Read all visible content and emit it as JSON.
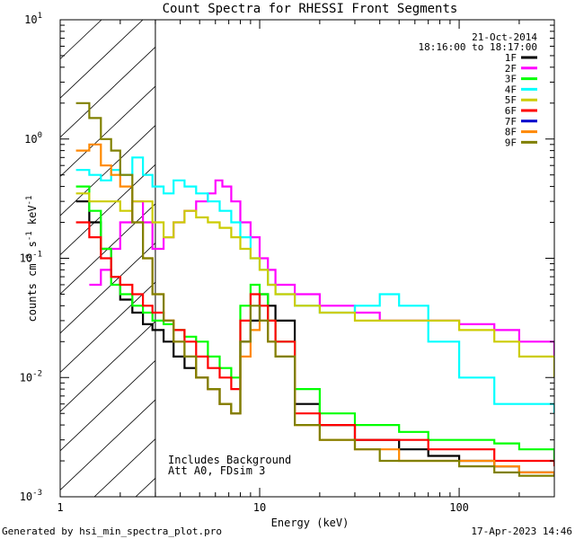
{
  "chart_data": {
    "type": "line",
    "title": "Count Spectra for RHESSI Front Segments",
    "xlabel": "Energy (keV)",
    "ylabel": "counts cm^-2 s^-1 keV^-1",
    "ylabel_parts": {
      "base": "counts cm",
      "e1": "-2",
      "mid": " s",
      "e2": "-1",
      "end": " keV",
      "e3": "-1"
    },
    "x_scale": "log",
    "y_scale": "log",
    "xlim": [
      1,
      300
    ],
    "ylim": [
      0.001,
      10
    ],
    "x_ticks": [
      {
        "value": 1,
        "label": "1"
      },
      {
        "value": 10,
        "label": "10"
      },
      {
        "value": 100,
        "label": "100"
      }
    ],
    "y_ticks": [
      {
        "value": 10,
        "base": "10",
        "exp": "1"
      },
      {
        "value": 1,
        "base": "10",
        "exp": "0"
      },
      {
        "value": 0.1,
        "base": "10",
        "exp": "-1"
      },
      {
        "value": 0.01,
        "base": "10",
        "exp": "-2"
      },
      {
        "value": 0.001,
        "base": "10",
        "exp": "-3"
      }
    ],
    "date": "21-Oct-2014",
    "time_range": "18:16:00 to 18:17:00",
    "attenuator_boundary_keV": 3,
    "annotations": [
      "Includes Background",
      "Att A0, FDsim 3"
    ],
    "legend_position": "top-right",
    "series": [
      {
        "name": "1F",
        "color": "#000000",
        "x": [
          1.2,
          1.4,
          1.6,
          1.8,
          2.0,
          2.3,
          2.6,
          2.9,
          3.3,
          3.7,
          4.2,
          4.8,
          5.5,
          6.3,
          7.2,
          8.0,
          9.0,
          10.0,
          11.0,
          12.0,
          15,
          20,
          30,
          40,
          50,
          70,
          100,
          150,
          200,
          300
        ],
        "y": [
          0.3,
          0.2,
          0.12,
          0.07,
          0.045,
          0.035,
          0.028,
          0.025,
          0.02,
          0.015,
          0.012,
          0.01,
          0.008,
          0.006,
          0.005,
          0.02,
          0.03,
          0.05,
          0.04,
          0.03,
          0.006,
          0.004,
          0.003,
          0.003,
          0.0025,
          0.0022,
          0.002,
          0.0018,
          0.0016,
          0.0015
        ]
      },
      {
        "name": "2F",
        "color": "#ff00ff",
        "x": [
          1.4,
          1.6,
          1.8,
          2.0,
          2.3,
          2.6,
          2.9,
          3.3,
          3.7,
          4.2,
          4.8,
          5.5,
          6.0,
          6.5,
          7.2,
          8.0,
          9.0,
          10.0,
          11.0,
          12.0,
          15,
          20,
          30,
          40,
          50,
          70,
          100,
          150,
          200,
          300
        ],
        "y": [
          0.06,
          0.08,
          0.12,
          0.2,
          0.3,
          0.2,
          0.12,
          0.15,
          0.2,
          0.25,
          0.3,
          0.35,
          0.45,
          0.4,
          0.3,
          0.2,
          0.15,
          0.1,
          0.08,
          0.06,
          0.05,
          0.04,
          0.035,
          0.03,
          0.03,
          0.03,
          0.028,
          0.025,
          0.02,
          0.015
        ]
      },
      {
        "name": "3F",
        "color": "#00ff00",
        "x": [
          1.2,
          1.4,
          1.6,
          1.8,
          2.0,
          2.3,
          2.6,
          2.9,
          3.3,
          3.7,
          4.2,
          4.8,
          5.5,
          6.3,
          7.2,
          8.0,
          9.0,
          10.0,
          11.0,
          12.0,
          15,
          20,
          30,
          40,
          50,
          70,
          100,
          150,
          200,
          300
        ],
        "y": [
          0.4,
          0.25,
          0.12,
          0.06,
          0.05,
          0.04,
          0.035,
          0.03,
          0.028,
          0.025,
          0.022,
          0.02,
          0.015,
          0.012,
          0.01,
          0.04,
          0.06,
          0.05,
          0.03,
          0.02,
          0.008,
          0.005,
          0.004,
          0.004,
          0.0035,
          0.003,
          0.003,
          0.0028,
          0.0025,
          0.002
        ]
      },
      {
        "name": "4F",
        "color": "#00ffff",
        "x": [
          1.2,
          1.4,
          1.6,
          1.8,
          2.0,
          2.3,
          2.6,
          2.9,
          3.3,
          3.7,
          4.2,
          4.8,
          5.5,
          6.3,
          7.2,
          8.0,
          9.0,
          10.0,
          11.0,
          12.0,
          15,
          20,
          30,
          40,
          50,
          70,
          100,
          150,
          200,
          300
        ],
        "y": [
          0.55,
          0.5,
          0.45,
          0.55,
          0.5,
          0.7,
          0.5,
          0.4,
          0.35,
          0.45,
          0.4,
          0.35,
          0.3,
          0.25,
          0.2,
          0.15,
          0.1,
          0.08,
          0.06,
          0.05,
          0.04,
          0.035,
          0.04,
          0.05,
          0.04,
          0.02,
          0.01,
          0.006,
          0.006,
          0.005
        ]
      },
      {
        "name": "5F",
        "color": "#cccc00",
        "x": [
          1.2,
          1.4,
          1.6,
          1.8,
          2.0,
          2.3,
          2.6,
          2.9,
          3.3,
          3.7,
          4.2,
          4.8,
          5.5,
          6.3,
          7.2,
          8.0,
          9.0,
          10.0,
          11.0,
          12.0,
          15,
          20,
          30,
          40,
          50,
          70,
          100,
          150,
          200,
          300
        ],
        "y": [
          0.35,
          0.3,
          0.3,
          0.3,
          0.25,
          0.3,
          0.3,
          0.2,
          0.15,
          0.2,
          0.25,
          0.22,
          0.2,
          0.18,
          0.15,
          0.12,
          0.1,
          0.08,
          0.06,
          0.05,
          0.04,
          0.035,
          0.03,
          0.03,
          0.03,
          0.03,
          0.025,
          0.02,
          0.015,
          0.01
        ]
      },
      {
        "name": "6F",
        "color": "#ff0000",
        "x": [
          1.2,
          1.4,
          1.6,
          1.8,
          2.0,
          2.3,
          2.6,
          2.9,
          3.3,
          3.7,
          4.2,
          4.8,
          5.5,
          6.3,
          7.2,
          8.0,
          9.0,
          10.0,
          11.0,
          12.0,
          15,
          20,
          30,
          40,
          50,
          70,
          100,
          150,
          200,
          300
        ],
        "y": [
          0.2,
          0.15,
          0.1,
          0.07,
          0.06,
          0.05,
          0.04,
          0.035,
          0.03,
          0.025,
          0.02,
          0.015,
          0.012,
          0.01,
          0.008,
          0.03,
          0.05,
          0.04,
          0.03,
          0.02,
          0.005,
          0.004,
          0.003,
          0.003,
          0.003,
          0.0025,
          0.0025,
          0.002,
          0.002,
          0.0018
        ]
      },
      {
        "name": "7F",
        "color": "#0000cc",
        "x": [],
        "y": []
      },
      {
        "name": "8F",
        "color": "#ff8800",
        "x": [
          1.2,
          1.4,
          1.6,
          1.8,
          2.0,
          2.3,
          2.6,
          2.9,
          3.3,
          3.7,
          4.2,
          4.8,
          5.5,
          6.3,
          7.2,
          8.0,
          9.0,
          10.0,
          11.0,
          12.0,
          15,
          20,
          30,
          40,
          50,
          70,
          100,
          150,
          200,
          300
        ],
        "y": [
          0.8,
          0.9,
          0.6,
          0.5,
          0.4,
          0.2,
          0.1,
          0.05,
          0.03,
          0.02,
          0.015,
          0.01,
          0.008,
          0.006,
          0.005,
          0.015,
          0.025,
          0.03,
          0.02,
          0.015,
          0.004,
          0.003,
          0.0025,
          0.0025,
          0.002,
          0.002,
          0.002,
          0.0018,
          0.0016,
          0.0015
        ]
      },
      {
        "name": "9F",
        "color": "#808000",
        "x": [
          1.2,
          1.4,
          1.6,
          1.8,
          2.0,
          2.3,
          2.6,
          2.9,
          3.3,
          3.7,
          4.2,
          4.8,
          5.5,
          6.3,
          7.2,
          8.0,
          9.0,
          10.0,
          11.0,
          12.0,
          15,
          20,
          30,
          40,
          50,
          70,
          100,
          150,
          200,
          300
        ],
        "y": [
          2.0,
          1.5,
          1.0,
          0.8,
          0.5,
          0.2,
          0.1,
          0.05,
          0.03,
          0.02,
          0.015,
          0.01,
          0.008,
          0.006,
          0.005,
          0.02,
          0.04,
          0.03,
          0.02,
          0.015,
          0.004,
          0.003,
          0.0025,
          0.002,
          0.002,
          0.002,
          0.0018,
          0.0016,
          0.0015,
          0.0015
        ]
      }
    ]
  },
  "footer": {
    "left": "Generated by hsi_min_spectra_plot.pro",
    "right": "17-Apr-2023 14:46"
  }
}
